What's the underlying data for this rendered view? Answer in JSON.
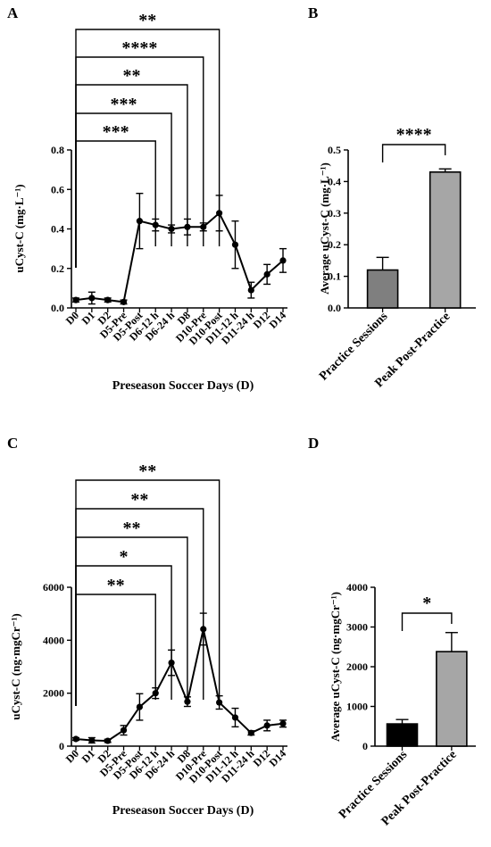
{
  "panels": {
    "a": "A",
    "b": "B",
    "c": "C",
    "d": "D"
  },
  "chart_data": [
    {
      "panel": "A",
      "type": "line",
      "ylabel": "uCyst-C (mg·L⁻¹)",
      "xlabel": "Preseason Soccer Days (D)",
      "ylim": [
        0,
        0.8
      ],
      "yticks": [
        "0.0",
        "0.2",
        "0.4",
        "0.6",
        "0.8"
      ],
      "yticks_values": [
        0,
        0.2,
        0.4,
        0.6,
        0.8
      ],
      "categories": [
        "D0",
        "D1",
        "D2",
        "D5-Pre",
        "D5-Post",
        "D6-12 h",
        "D6-24 h",
        "D8",
        "D10-Pre",
        "D10-Post",
        "D11-12 h",
        "D11-24 h",
        "D12",
        "D14"
      ],
      "values": [
        0.04,
        0.05,
        0.04,
        0.03,
        0.44,
        0.42,
        0.4,
        0.41,
        0.41,
        0.48,
        0.32,
        0.09,
        0.17,
        0.24
      ],
      "errors": [
        0.01,
        0.03,
        0.01,
        0.01,
        0.14,
        0.03,
        0.02,
        0.04,
        0.02,
        0.09,
        0.12,
        0.04,
        0.05,
        0.06
      ],
      "brackets": [
        {
          "from": 0,
          "to": 5,
          "label": "***"
        },
        {
          "from": 0,
          "to": 6,
          "label": "***"
        },
        {
          "from": 0,
          "to": 7,
          "label": "**"
        },
        {
          "from": 0,
          "to": 8,
          "label": "****"
        },
        {
          "from": 0,
          "to": 9,
          "label": "**"
        }
      ]
    },
    {
      "panel": "B",
      "type": "bar",
      "ylabel": "Average uCyst-C (mg·L⁻¹)",
      "ylim": [
        0,
        0.5
      ],
      "yticks": [
        "0.0",
        "0.1",
        "0.2",
        "0.3",
        "0.4",
        "0.5"
      ],
      "yticks_values": [
        0,
        0.1,
        0.2,
        0.3,
        0.4,
        0.5
      ],
      "categories": [
        "Practice Sessions",
        "Peak Post-Practice"
      ],
      "values": [
        0.12,
        0.43
      ],
      "errors": [
        0.04,
        0.01
      ],
      "colors": [
        "#7f7f7f",
        "#a6a6a6"
      ],
      "brackets": [
        {
          "from": 0,
          "to": 1,
          "label": "****"
        }
      ]
    },
    {
      "panel": "C",
      "type": "line",
      "ylabel": "uCyst-C (ng·mgCr⁻¹)",
      "xlabel": "Preseason Soccer Days (D)",
      "ylim": [
        0,
        6000
      ],
      "yticks": [
        "0",
        "2000",
        "4000",
        "6000"
      ],
      "yticks_values": [
        0,
        2000,
        4000,
        6000
      ],
      "categories": [
        "D0",
        "D1",
        "D2",
        "D5-Pre",
        "D5-Post",
        "D6-12 h",
        "D6-24 h",
        "D8",
        "D10-Pre",
        "D10-Post",
        "D11-12 h",
        "D11-24 h",
        "D12",
        "D14"
      ],
      "values": [
        270,
        220,
        200,
        600,
        1480,
        2000,
        3150,
        1680,
        4420,
        1650,
        1080,
        500,
        780,
        850
      ],
      "errors": [
        50,
        100,
        60,
        180,
        500,
        200,
        480,
        180,
        600,
        250,
        350,
        80,
        200,
        130
      ],
      "brackets": [
        {
          "from": 0,
          "to": 5,
          "label": "**"
        },
        {
          "from": 0,
          "to": 6,
          "label": "*"
        },
        {
          "from": 0,
          "to": 7,
          "label": "**"
        },
        {
          "from": 0,
          "to": 8,
          "label": "**"
        },
        {
          "from": 0,
          "to": 9,
          "label": "**"
        }
      ]
    },
    {
      "panel": "D",
      "type": "bar",
      "ylabel": "Average uCyst-C (ng·mgCr⁻¹)",
      "ylim": [
        0,
        4000
      ],
      "yticks": [
        "0",
        "1000",
        "2000",
        "3000",
        "4000"
      ],
      "yticks_values": [
        0,
        1000,
        2000,
        3000,
        4000
      ],
      "categories": [
        "Practice Sessions",
        "Peak Post-Practice"
      ],
      "values": [
        560,
        2380
      ],
      "errors": [
        110,
        480
      ],
      "colors": [
        "#000000",
        "#a6a6a6"
      ],
      "brackets": [
        {
          "from": 0,
          "to": 1,
          "label": "*"
        }
      ]
    }
  ]
}
